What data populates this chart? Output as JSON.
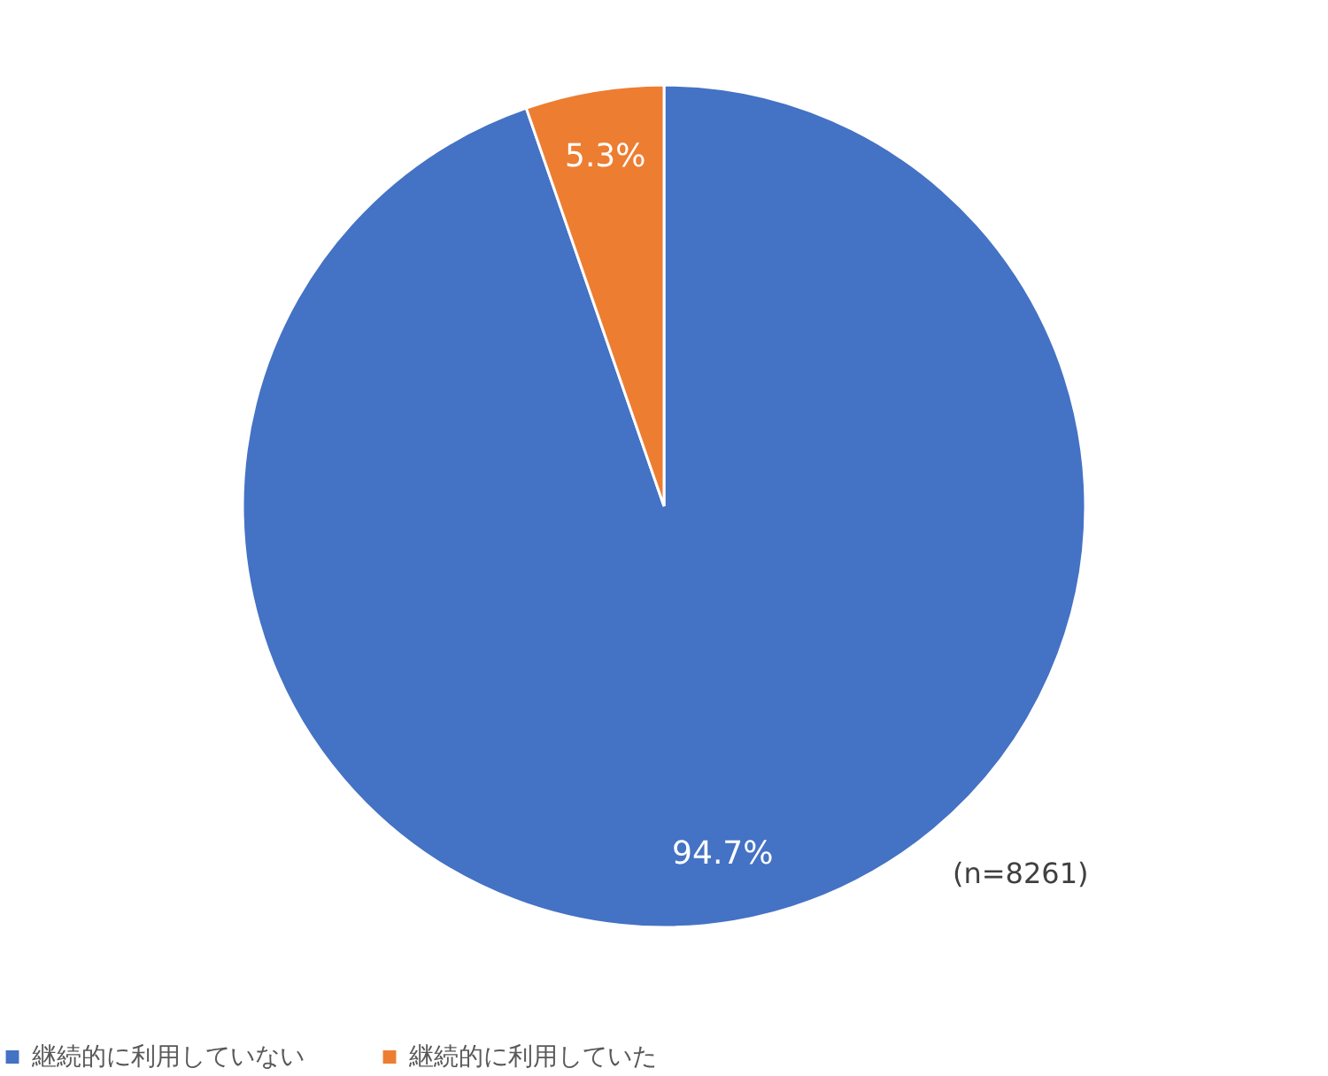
{
  "chart_data": {
    "type": "pie",
    "categories": [
      "継続的に利用していない",
      "継続的に利用していた"
    ],
    "values": [
      94.7,
      5.3
    ],
    "colors": [
      "#4472c4",
      "#ed7d31"
    ],
    "value_labels": [
      "94.7%",
      "5.3%"
    ],
    "legend": "bottom",
    "annotations": [
      "(n=8261)"
    ]
  }
}
